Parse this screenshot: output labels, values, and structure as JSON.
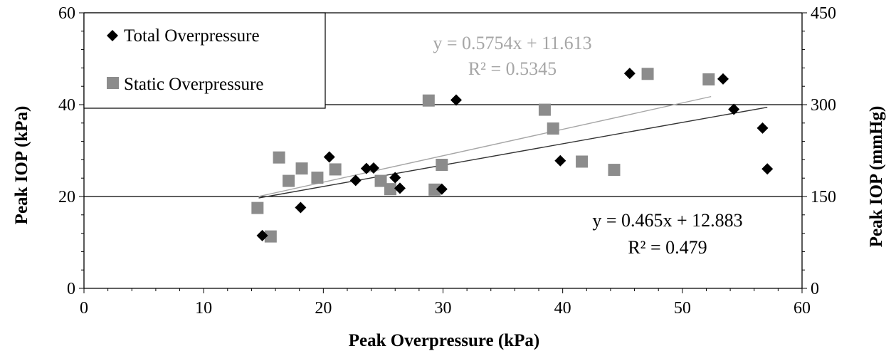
{
  "chart_data": {
    "type": "scatter",
    "xlabel": "Peak Overpressure (kPa)",
    "ylabel": "Peak IOP (kPa)",
    "y2label": "Peak IOP (mmHg)",
    "xlim": [
      0,
      60
    ],
    "ylim": [
      0,
      60
    ],
    "y2lim": [
      0,
      450
    ],
    "x_ticks": [
      "0",
      "10",
      "20",
      "30",
      "40",
      "50",
      "60"
    ],
    "y_ticks": [
      "0",
      "20",
      "40",
      "60"
    ],
    "y2_ticks": [
      "0",
      "150",
      "300",
      "450"
    ],
    "gridlines_y": [
      20,
      40
    ],
    "legend_position": "top-left",
    "colors": {
      "total": "#000000",
      "static": "#8c8c8c",
      "total_trend": "#333333",
      "static_trend": "#a6a6a6"
    },
    "series": [
      {
        "name": "Total Overpressure",
        "marker": "diamond",
        "points": [
          [
            14.9,
            11.5
          ],
          [
            18.1,
            17.6
          ],
          [
            20.5,
            28.6
          ],
          [
            22.7,
            23.5
          ],
          [
            23.6,
            26.1
          ],
          [
            24.2,
            26.2
          ],
          [
            26.0,
            24.1
          ],
          [
            26.4,
            21.8
          ],
          [
            29.9,
            21.6
          ],
          [
            31.1,
            41.0
          ],
          [
            39.8,
            27.8
          ],
          [
            45.6,
            46.8
          ],
          [
            53.4,
            45.6
          ],
          [
            54.3,
            39.0
          ],
          [
            56.7,
            34.9
          ],
          [
            57.1,
            26.0
          ]
        ]
      },
      {
        "name": "Static Overpressure",
        "marker": "square",
        "points": [
          [
            14.5,
            17.5
          ],
          [
            15.6,
            11.3
          ],
          [
            16.3,
            28.5
          ],
          [
            17.1,
            23.4
          ],
          [
            18.2,
            26.1
          ],
          [
            19.5,
            24.1
          ],
          [
            21.0,
            25.9
          ],
          [
            24.8,
            23.4
          ],
          [
            25.6,
            21.6
          ],
          [
            28.8,
            40.9
          ],
          [
            29.3,
            21.5
          ],
          [
            29.9,
            26.9
          ],
          [
            38.5,
            38.9
          ],
          [
            39.2,
            34.8
          ],
          [
            41.6,
            27.6
          ],
          [
            44.3,
            25.8
          ],
          [
            47.1,
            46.7
          ],
          [
            52.2,
            45.5
          ]
        ]
      }
    ],
    "trendlines": [
      {
        "series": "Total Overpressure",
        "slope": 0.465,
        "intercept": 12.883,
        "x_range": [
          14.6,
          57.1
        ],
        "equation": "y = 0.465x + 12.883",
        "r2": "R² = 0.479"
      },
      {
        "series": "Static Overpressure",
        "slope": 0.5754,
        "intercept": 11.613,
        "x_range": [
          14.6,
          52.4
        ],
        "equation": "y = 0.5754x + 11.613",
        "r2": "R² = 0.5345"
      }
    ]
  }
}
